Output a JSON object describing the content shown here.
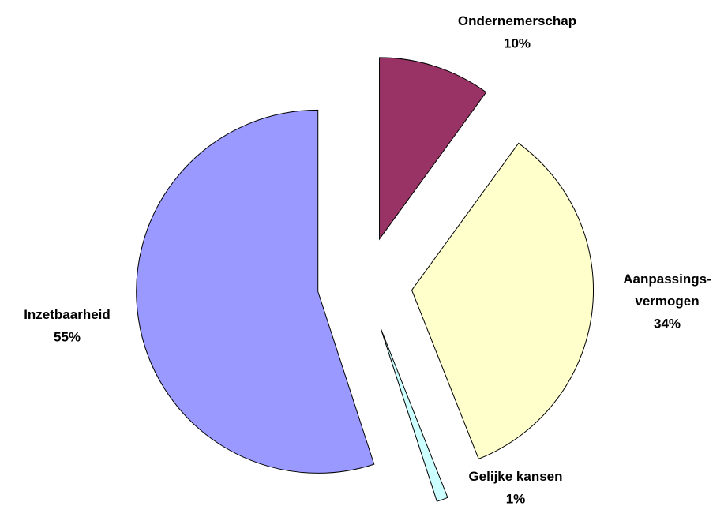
{
  "chart_data": {
    "type": "pie",
    "categories": [
      "Ondernemerschap",
      "Aanpassings-\nvermogen",
      "Gelijke kansen",
      "Inzetbaarheid"
    ],
    "values": [
      10,
      34,
      1,
      55
    ],
    "value_labels": [
      "10%",
      "34%",
      "1%",
      "55%"
    ],
    "colors": [
      "#993366",
      "#ffffcc",
      "#ccffff",
      "#9999ff"
    ],
    "exploded": true
  }
}
